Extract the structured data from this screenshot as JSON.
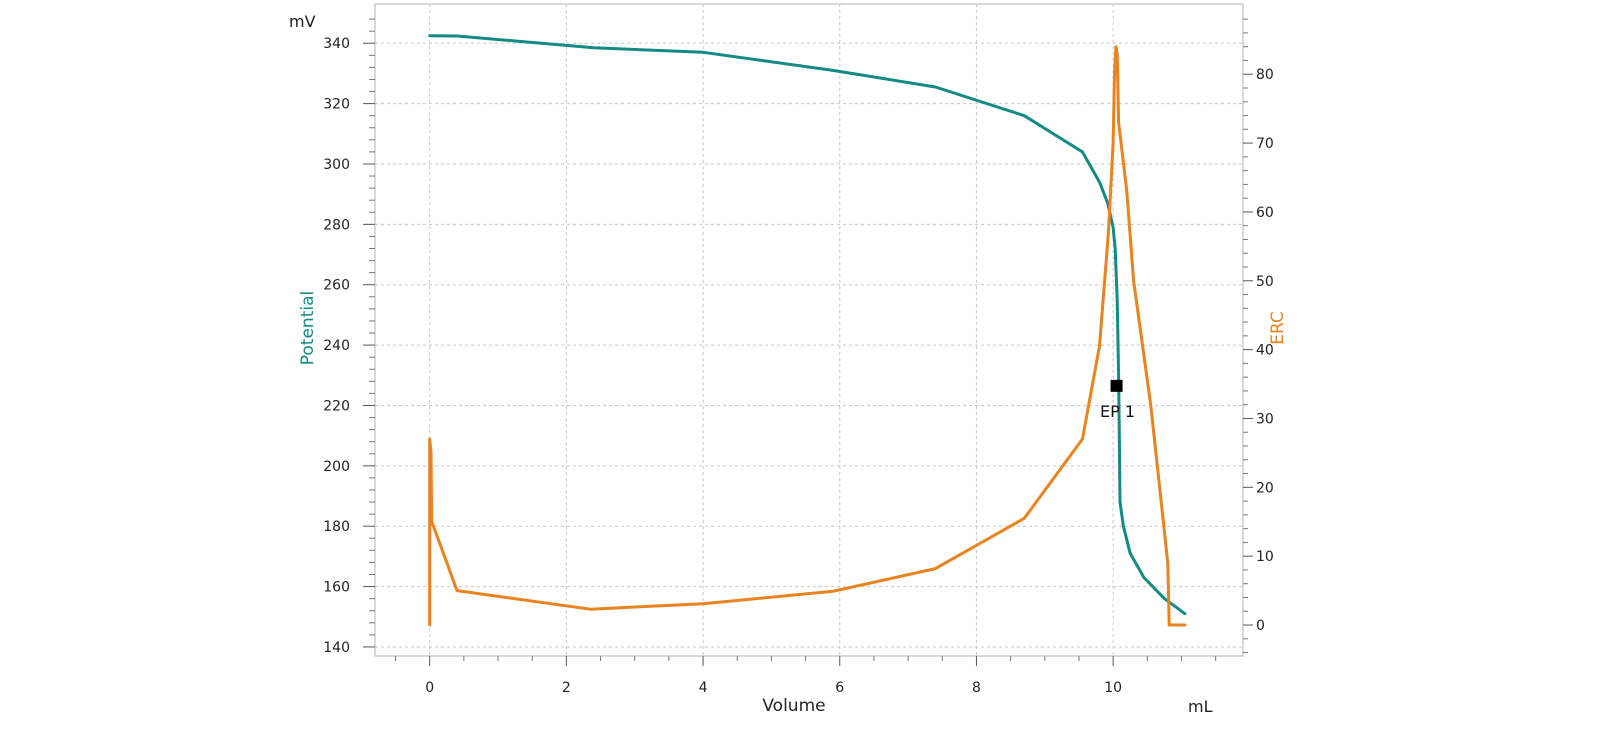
{
  "chart_data": {
    "type": "line",
    "x_axis": {
      "label": "Volume",
      "unit": "mL",
      "range": [
        -0.8,
        11.9
      ],
      "ticks": [
        0,
        2,
        4,
        6,
        8,
        10
      ]
    },
    "y_left": {
      "label": "Potential",
      "unit": "mV",
      "range": [
        137,
        353
      ],
      "ticks": [
        140,
        160,
        180,
        200,
        220,
        240,
        260,
        280,
        300,
        320,
        340
      ],
      "color": "#138a84"
    },
    "y_right": {
      "label": "ERC",
      "unit": "",
      "range": [
        -4.5,
        90.2
      ],
      "ticks": [
        0,
        10,
        20,
        30,
        40,
        50,
        60,
        70,
        80
      ],
      "color": "#e8831f"
    },
    "grid": true,
    "series": [
      {
        "name": "Potential",
        "axis": "left",
        "color": "#138a84",
        "points": [
          [
            0,
            342.5
          ],
          [
            0.4,
            342.4
          ],
          [
            2.4,
            338.5
          ],
          [
            4.0,
            337
          ],
          [
            5.9,
            331
          ],
          [
            7.4,
            325.5
          ],
          [
            8.7,
            316
          ],
          [
            9.55,
            304
          ],
          [
            9.8,
            294
          ],
          [
            9.92,
            287
          ],
          [
            10.0,
            279
          ],
          [
            10.03,
            272
          ],
          [
            10.06,
            255
          ],
          [
            10.08,
            230
          ],
          [
            10.09,
            210
          ],
          [
            10.1,
            188
          ],
          [
            10.15,
            180
          ],
          [
            10.25,
            171
          ],
          [
            10.45,
            163
          ],
          [
            10.75,
            156
          ],
          [
            11.05,
            151
          ]
        ]
      },
      {
        "name": "ERC",
        "axis": "right",
        "color": "#e8831f",
        "points": [
          [
            0,
            0
          ],
          [
            0,
            27
          ],
          [
            0.02,
            25
          ],
          [
            0.03,
            15
          ],
          [
            0.05,
            14.5
          ],
          [
            0.4,
            5
          ],
          [
            2.35,
            2.3
          ],
          [
            4.0,
            3.1
          ],
          [
            5.9,
            4.9
          ],
          [
            7.4,
            8.2
          ],
          [
            8.7,
            15.5
          ],
          [
            9.55,
            27
          ],
          [
            9.8,
            40.5
          ],
          [
            9.93,
            57
          ],
          [
            10.0,
            70
          ],
          [
            10.02,
            80
          ],
          [
            10.04,
            84
          ],
          [
            10.06,
            83
          ],
          [
            10.08,
            73
          ],
          [
            10.2,
            63
          ],
          [
            10.3,
            50
          ],
          [
            10.55,
            32
          ],
          [
            10.8,
            9
          ],
          [
            10.82,
            0
          ],
          [
            11.05,
            0
          ]
        ]
      }
    ],
    "annotations": [
      {
        "label": "EP 1",
        "x": 10.05,
        "y_left": 226.5,
        "marker": "square",
        "color": "#000000"
      }
    ]
  }
}
